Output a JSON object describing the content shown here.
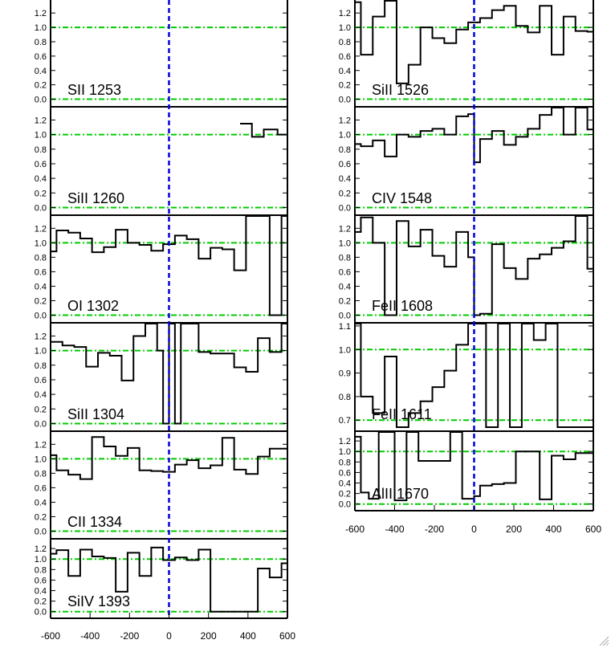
{
  "chart_data": {
    "type": "line",
    "style": "step",
    "line_color": "#000000",
    "continuum_color": "#00cc00",
    "zero_velocity_color": "#0000dd",
    "columns": [
      {
        "x_ticks": [
          -600,
          -400,
          -200,
          0,
          200,
          400,
          600
        ],
        "xlim": [
          -600,
          600
        ],
        "panels": [
          {
            "label": "SII 1253",
            "ylim": [
              -0.05,
              1.37
            ],
            "y_ticks": [
              "0.0",
              "0.2",
              "0.4",
              "0.6",
              "0.8",
              "1.0",
              "1.2"
            ],
            "series": []
          },
          {
            "label": "SiII 1260",
            "ylim": [
              -0.05,
              1.37
            ],
            "y_ticks": [
              "0.0",
              "0.2",
              "0.4",
              "0.6",
              "0.8",
              "1.0",
              "1.2"
            ],
            "series": [
              {
                "x": [
                  360,
                  420,
                  480,
                  550,
                  600
                ],
                "y": [
                  1.15,
                  0.97,
                  1.07,
                  1.0,
                  1.0
                ]
              }
            ]
          },
          {
            "label": "OI 1302",
            "ylim": [
              -0.05,
              1.37
            ],
            "y_ticks": [
              "0.0",
              "0.2",
              "0.4",
              "0.6",
              "0.8",
              "1.0",
              "1.2"
            ],
            "series": [
              {
                "x": [
                  -600,
                  -570,
                  -510,
                  -450,
                  -390,
                  -330,
                  -270,
                  -210,
                  -150,
                  -90,
                  -30,
                  30,
                  90,
                  150,
                  210,
                  270,
                  330,
                  390,
                  450,
                  510,
                  570,
                  600
                ],
                "y": [
                  0.88,
                  1.17,
                  1.14,
                  1.06,
                  0.87,
                  0.94,
                  1.18,
                  1.0,
                  0.97,
                  0.89,
                  0.98,
                  1.1,
                  1.05,
                  0.78,
                  0.93,
                  0.91,
                  0.62,
                  1.37,
                  1.37,
                  0.0,
                  1.37,
                  0.0
                ]
              }
            ]
          },
          {
            "label": "SiII 1304",
            "ylim": [
              -0.05,
              1.37
            ],
            "y_ticks": [
              "0.0",
              "0.2",
              "0.4",
              "0.6",
              "0.8",
              "1.0",
              "1.2"
            ],
            "series": [
              {
                "x": [
                  -600,
                  -540,
                  -480,
                  -420,
                  -360,
                  -300,
                  -240,
                  -180,
                  -120,
                  -60,
                  -30,
                  0,
                  30,
                  60,
                  90,
                  150,
                  210,
                  270,
                  330,
                  390,
                  450,
                  510,
                  570,
                  600
                ],
                "y": [
                  1.12,
                  1.07,
                  1.05,
                  0.78,
                  0.97,
                  0.93,
                  0.59,
                  1.2,
                  1.37,
                  1.0,
                  0.0,
                  1.37,
                  0.0,
                  1.37,
                  1.37,
                  0.98,
                  0.96,
                  0.96,
                  0.77,
                  0.71,
                  1.17,
                  0.98,
                  1.37,
                  1.37
                ]
              }
            ]
          },
          {
            "label": "CII 1334",
            "ylim": [
              -0.05,
              1.37
            ],
            "y_ticks": [
              "0.0",
              "0.2",
              "0.4",
              "0.6",
              "0.8",
              "1.0",
              "1.2"
            ],
            "series": [
              {
                "x": [
                  -600,
                  -570,
                  -510,
                  -450,
                  -390,
                  -330,
                  -270,
                  -210,
                  -150,
                  -90,
                  -30,
                  30,
                  90,
                  150,
                  210,
                  270,
                  330,
                  390,
                  450,
                  510,
                  570,
                  600
                ],
                "y": [
                  1.05,
                  0.84,
                  0.78,
                  0.72,
                  1.3,
                  1.17,
                  1.04,
                  1.15,
                  0.84,
                  0.83,
                  0.82,
                  0.92,
                  0.98,
                  0.87,
                  0.91,
                  1.29,
                  0.85,
                  0.79,
                  1.03,
                  1.14,
                  1.14,
                  1.14
                ]
              }
            ]
          },
          {
            "label": "SiIV 1393",
            "ylim": [
              -0.05,
              1.37
            ],
            "y_ticks": [
              "0.0",
              "0.2",
              "0.4",
              "0.6",
              "0.8",
              "1.0",
              "1.2"
            ],
            "series": [
              {
                "x": [
                  -600,
                  -570,
                  -510,
                  -450,
                  -390,
                  -330,
                  -270,
                  -210,
                  -150,
                  -90,
                  -30,
                  30,
                  90,
                  150,
                  210,
                  270,
                  330,
                  390,
                  450,
                  510,
                  570,
                  600
                ],
                "y": [
                  1.1,
                  1.17,
                  0.68,
                  1.18,
                  1.05,
                  1.02,
                  0.38,
                  1.12,
                  0.68,
                  1.22,
                  0.98,
                  1.03,
                  0.98,
                  1.18,
                  0.0,
                  0.0,
                  0.0,
                  0.0,
                  0.82,
                  0.65,
                  0.92,
                  0.92
                ]
              }
            ]
          }
        ]
      },
      {
        "x_ticks": [
          -600,
          -400,
          -200,
          0,
          200,
          400,
          600
        ],
        "xlim": [
          -600,
          600
        ],
        "panels": [
          {
            "label": "SiII 1526",
            "ylim": [
              -0.05,
              1.37
            ],
            "y_ticks": [
              "0.0",
              "0.2",
              "0.4",
              "0.6",
              "0.8",
              "1.0",
              "1.2"
            ],
            "series": [
              {
                "x": [
                  -600,
                  -570,
                  -510,
                  -450,
                  -390,
                  -330,
                  -270,
                  -210,
                  -150,
                  -90,
                  -30,
                  30,
                  90,
                  150,
                  210,
                  270,
                  330,
                  390,
                  450,
                  510,
                  570,
                  600
                ],
                "y": [
                  1.35,
                  0.62,
                  1.15,
                  1.37,
                  0.22,
                  0.48,
                  1.0,
                  0.85,
                  0.78,
                  0.97,
                  1.07,
                  1.13,
                  1.24,
                  1.3,
                  1.02,
                  0.93,
                  1.3,
                  0.62,
                  1.15,
                  0.95,
                  0.94,
                  0.94
                ]
              }
            ]
          },
          {
            "label": "CIV 1548",
            "ylim": [
              -0.05,
              1.37
            ],
            "y_ticks": [
              "0.0",
              "0.2",
              "0.4",
              "0.6",
              "0.8",
              "1.0",
              "1.2"
            ],
            "series": [
              {
                "x": [
                  -600,
                  -570,
                  -510,
                  -450,
                  -390,
                  -330,
                  -270,
                  -210,
                  -150,
                  -90,
                  -30,
                  0,
                  30,
                  90,
                  150,
                  210,
                  270,
                  330,
                  390,
                  450,
                  510,
                  570,
                  600
                ],
                "y": [
                  0.87,
                  0.84,
                  0.92,
                  0.7,
                  1.0,
                  0.97,
                  1.05,
                  1.08,
                  1.0,
                  1.25,
                  1.28,
                  0.62,
                  0.94,
                  1.05,
                  0.86,
                  0.97,
                  1.08,
                  1.27,
                  1.37,
                  1.0,
                  1.37,
                  1.07,
                  1.07
                ]
              }
            ]
          },
          {
            "label": "FeII 1608",
            "ylim": [
              -0.05,
              1.37
            ],
            "y_ticks": [
              "0.0",
              "0.2",
              "0.4",
              "0.6",
              "0.8",
              "1.0",
              "1.2"
            ],
            "series": [
              {
                "x": [
                  -600,
                  -570,
                  -510,
                  -450,
                  -390,
                  -330,
                  -270,
                  -210,
                  -150,
                  -90,
                  -30,
                  0,
                  30,
                  90,
                  150,
                  210,
                  270,
                  330,
                  390,
                  450,
                  510,
                  570,
                  600
                ],
                "y": [
                  1.15,
                  1.35,
                  1.0,
                  0.0,
                  1.3,
                  0.95,
                  1.18,
                  0.82,
                  0.67,
                  1.15,
                  0.8,
                  0.0,
                  0.02,
                  0.98,
                  0.65,
                  0.5,
                  0.78,
                  0.84,
                  0.93,
                  1.02,
                  1.37,
                  0.64,
                  0.64
                ]
              }
            ]
          },
          {
            "label": "FeII 1611",
            "ylim": [
              0.67,
              1.11
            ],
            "y_ticks": [
              "0.7",
              "0.8",
              "0.9",
              "1.0",
              "1.1"
            ],
            "series": [
              {
                "x": [
                  -600,
                  -570,
                  -510,
                  -450,
                  -390,
                  -330,
                  -270,
                  -210,
                  -150,
                  -90,
                  -30,
                  60,
                  120,
                  180,
                  240,
                  300,
                  360,
                  420,
                  480,
                  540,
                  600
                ],
                "y": [
                  1.11,
                  0.8,
                  0.73,
                  0.97,
                  0.67,
                  0.73,
                  0.78,
                  0.84,
                  0.91,
                  1.02,
                  1.11,
                  0.67,
                  1.11,
                  0.67,
                  1.11,
                  1.04,
                  1.11,
                  0.67,
                  0.67,
                  0.67,
                  1.11
                ]
              }
            ]
          },
          {
            "label": "AlII 1670",
            "ylim": [
              -0.05,
              1.37
            ],
            "y_ticks": [
              "0.0",
              "0.2",
              "0.4",
              "0.6",
              "0.8",
              "1.0",
              "1.2"
            ],
            "series": [
              {
                "x": [
                  -600,
                  -570,
                  -530,
                  -480,
                  -400,
                  -340,
                  -280,
                  -210,
                  -120,
                  -60,
                  0,
                  30,
                  90,
                  150,
                  210,
                  270,
                  330,
                  390,
                  450,
                  510,
                  570,
                  600
                ],
                "y": [
                  1.28,
                  0.22,
                  0.1,
                  1.37,
                  0.07,
                  1.37,
                  0.82,
                  0.82,
                  1.37,
                  0.1,
                  0.15,
                  0.35,
                  0.38,
                  0.4,
                  1.0,
                  1.0,
                  0.09,
                  0.92,
                  0.85,
                  0.97,
                  0.97,
                  0.68
                ]
              }
            ]
          }
        ]
      }
    ]
  }
}
